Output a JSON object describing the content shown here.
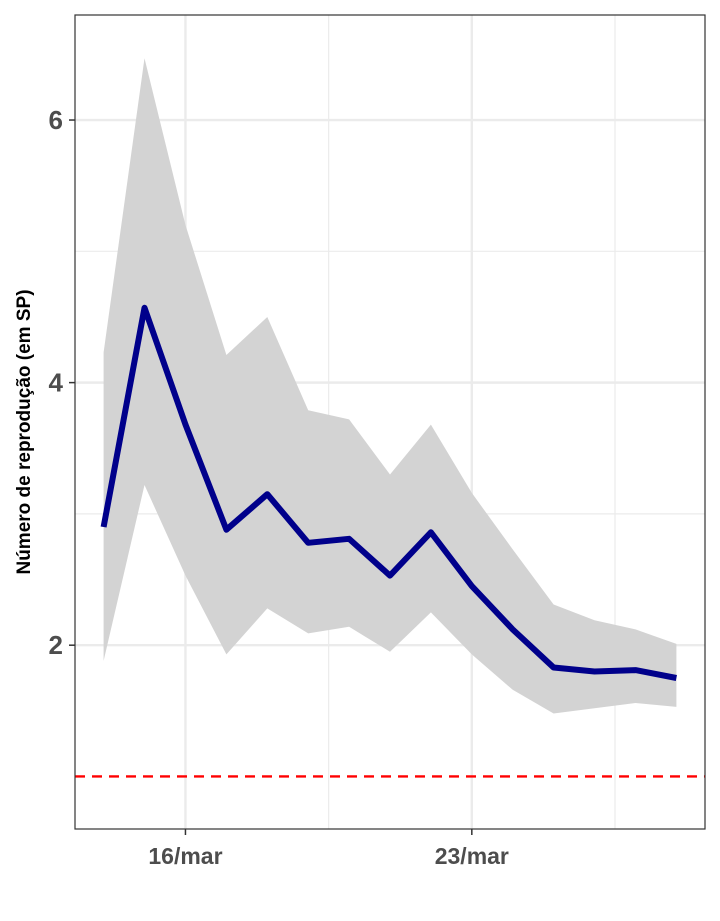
{
  "chart_data": {
    "type": "line",
    "ylabel": "Número de reprodução (em SP)",
    "xlabel": "",
    "x_tick_labels": [
      {
        "label": "16/mar",
        "day": 16
      },
      {
        "label": "23/mar",
        "day": 23
      }
    ],
    "y_ticks": [
      2,
      4,
      6
    ],
    "ylim": [
      0.6,
      6.8
    ],
    "xlim": [
      13.3,
      28.7
    ],
    "grid": true,
    "series": [
      {
        "x": [
          14,
          15,
          16,
          17,
          18,
          19,
          20,
          21,
          22,
          23,
          24,
          25,
          26,
          27,
          28
        ],
        "values": [
          2.9,
          4.57,
          3.68,
          2.88,
          3.15,
          2.78,
          2.81,
          2.53,
          2.86,
          2.45,
          2.12,
          1.83,
          1.8,
          1.81,
          1.75
        ],
        "lower": [
          1.88,
          3.22,
          2.53,
          1.93,
          2.28,
          2.09,
          2.14,
          1.95,
          2.25,
          1.93,
          1.66,
          1.48,
          1.52,
          1.56,
          1.53
        ],
        "upper": [
          4.23,
          6.47,
          5.2,
          4.21,
          4.5,
          3.79,
          3.72,
          3.3,
          3.68,
          3.16,
          2.73,
          2.31,
          2.19,
          2.12,
          2.01
        ],
        "color": "#00008b",
        "band_color": "#d3d3d3"
      }
    ],
    "reference_line": {
      "y": 1.0,
      "color": "#ff0000",
      "style": "dashed"
    }
  }
}
